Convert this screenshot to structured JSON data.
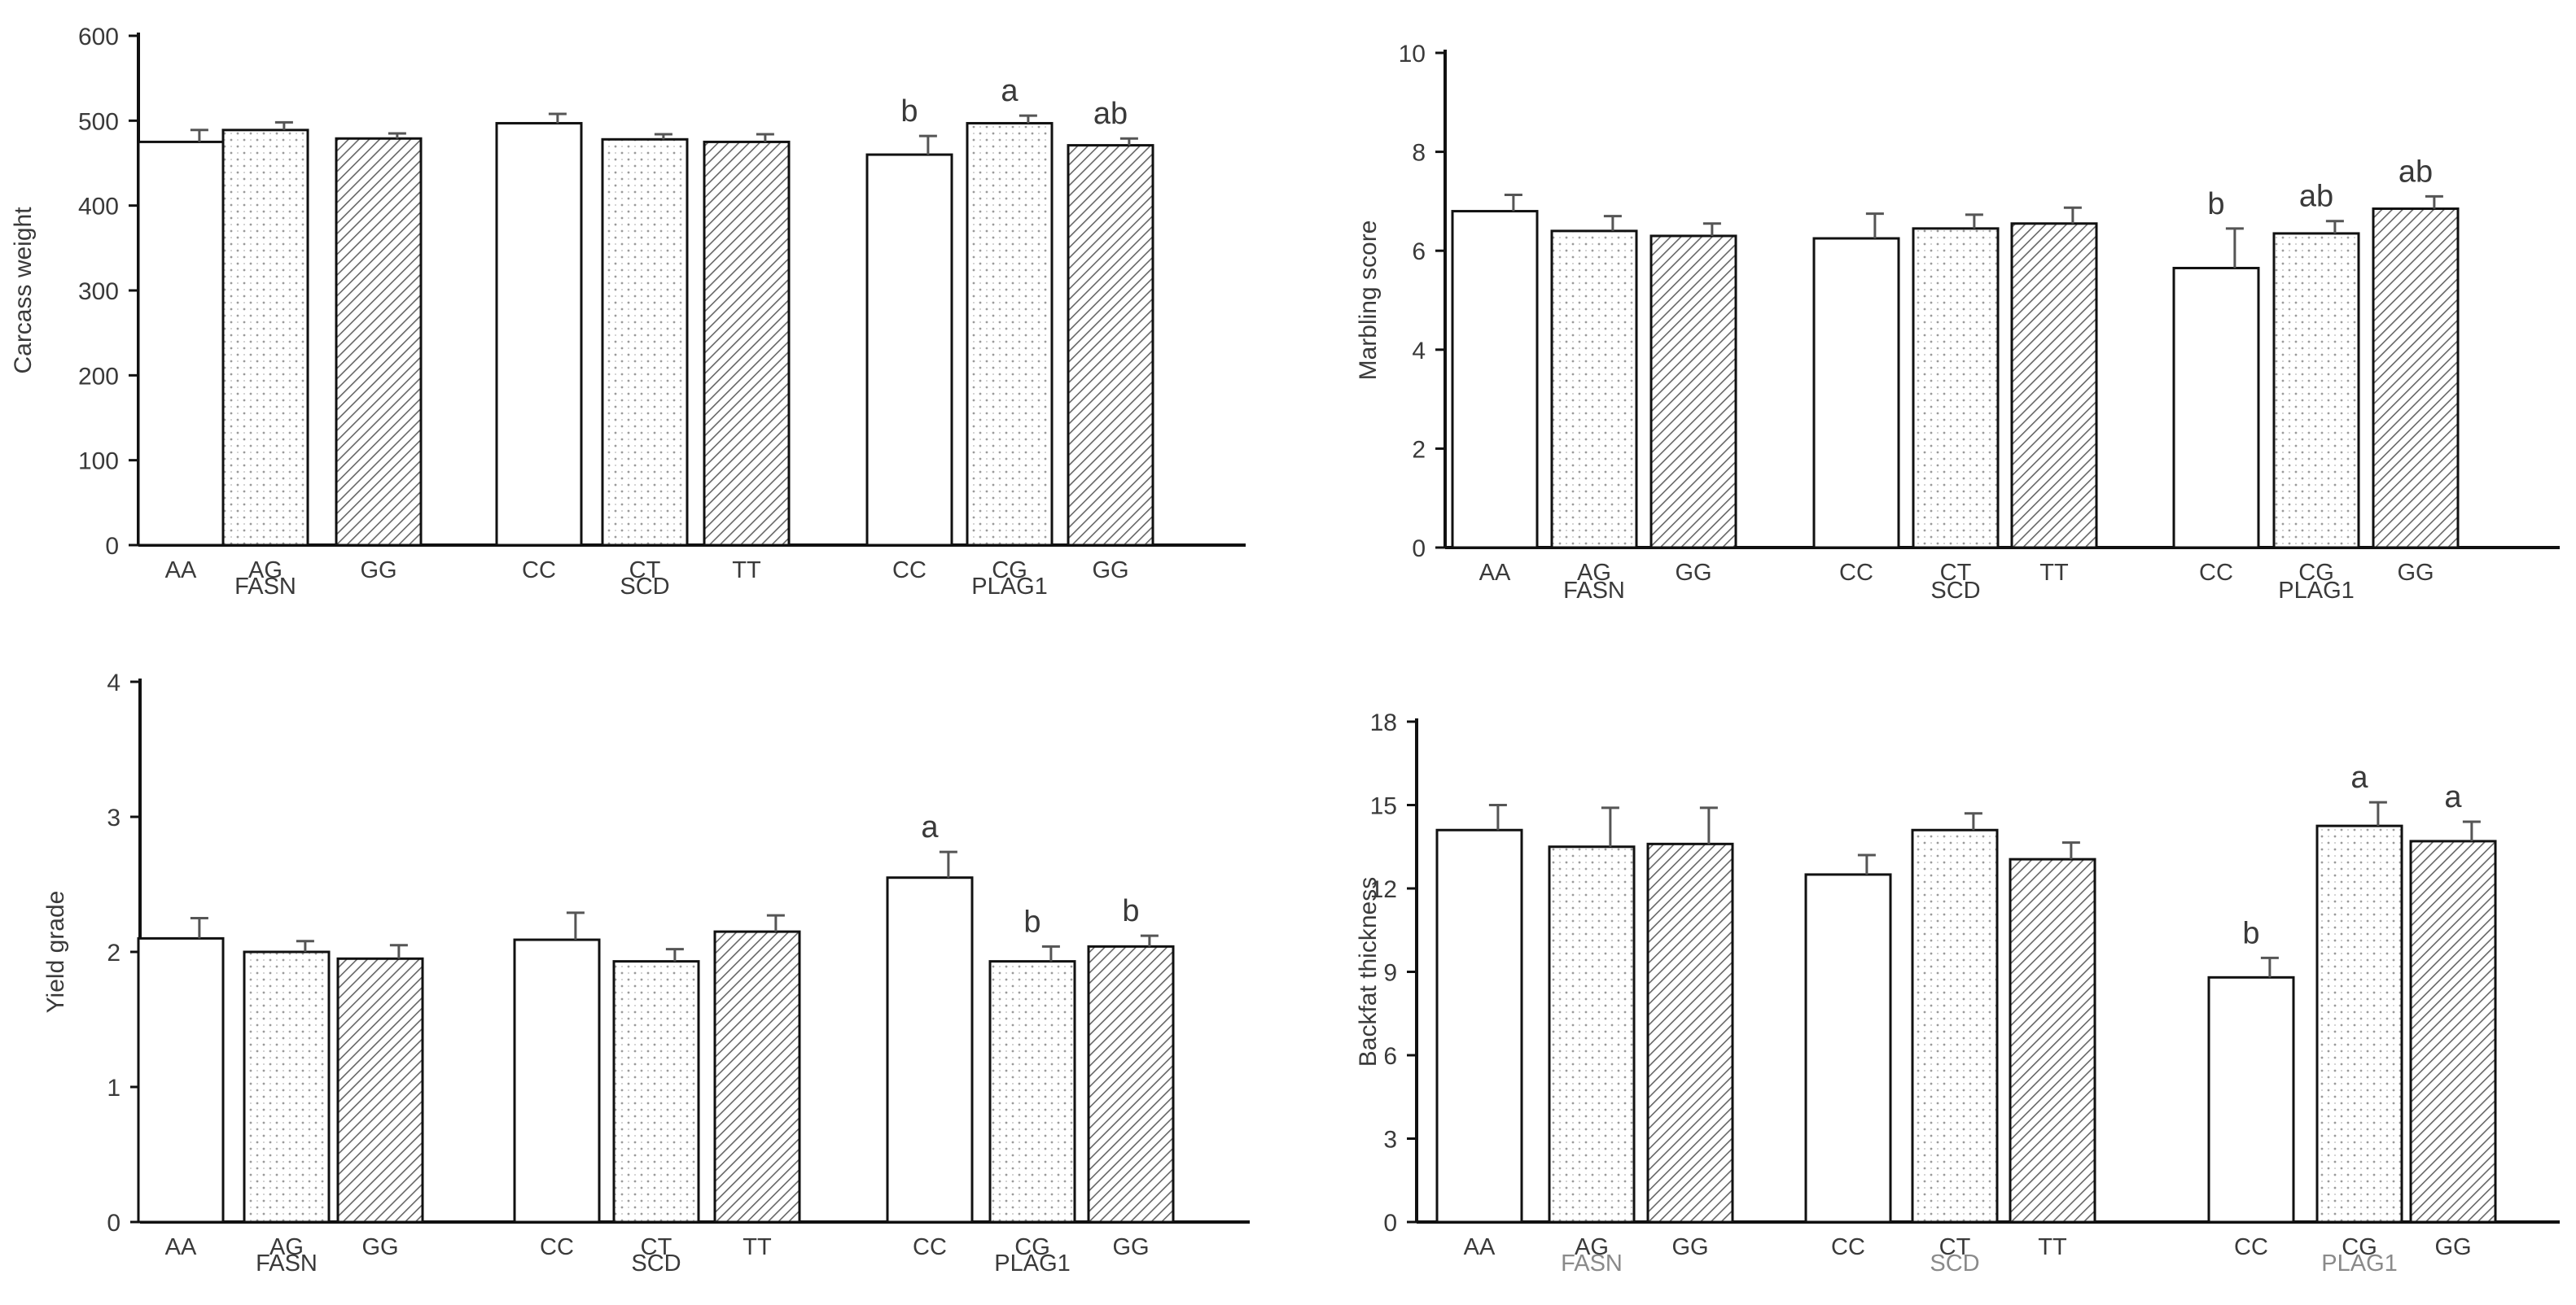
{
  "chart_data": [
    {
      "type": "bar",
      "ylabel": "Carcass weight",
      "ylim": [
        0,
        600
      ],
      "yticks": [
        "0",
        "100",
        "200",
        "300",
        "400",
        "500",
        "600"
      ],
      "gene_label_color": "#3a3a3a",
      "groups": [
        {
          "gene": "FASN",
          "categories": [
            "AA",
            "AG",
            "GG"
          ],
          "values": [
            475,
            489,
            479
          ],
          "errors": [
            14,
            9,
            6
          ],
          "letters": [
            "",
            "",
            ""
          ]
        },
        {
          "gene": "SCD",
          "categories": [
            "CC",
            "CT",
            "TT"
          ],
          "values": [
            497,
            478,
            475
          ],
          "errors": [
            11,
            6,
            9
          ],
          "letters": [
            "",
            "",
            ""
          ]
        },
        {
          "gene": "PLAG1",
          "categories": [
            "CC",
            "CG",
            "GG"
          ],
          "values": [
            460,
            497,
            471
          ],
          "errors": [
            22,
            9,
            8
          ],
          "letters": [
            "b",
            "a",
            "ab"
          ]
        }
      ]
    },
    {
      "type": "bar",
      "ylabel": "Marbling score",
      "ylim": [
        0,
        10
      ],
      "yticks": [
        "0",
        "2",
        "4",
        "6",
        "8",
        "10"
      ],
      "gene_label_color": "#3a3a3a",
      "groups": [
        {
          "gene": "FASN",
          "categories": [
            "AA",
            "AG",
            "GG"
          ],
          "values": [
            6.8,
            6.4,
            6.3
          ],
          "errors": [
            0.33,
            0.3,
            0.25
          ],
          "letters": [
            "",
            "",
            ""
          ]
        },
        {
          "gene": "SCD",
          "categories": [
            "CC",
            "CT",
            "TT"
          ],
          "values": [
            6.25,
            6.45,
            6.55
          ],
          "errors": [
            0.5,
            0.28,
            0.32
          ],
          "letters": [
            "",
            "",
            ""
          ]
        },
        {
          "gene": "PLAG1",
          "categories": [
            "CC",
            "CG",
            "GG"
          ],
          "values": [
            5.65,
            6.35,
            6.85
          ],
          "errors": [
            0.8,
            0.25,
            0.25
          ],
          "letters": [
            "b",
            "ab",
            "ab"
          ]
        }
      ]
    },
    {
      "type": "bar",
      "ylabel": "Yield grade",
      "ylim": [
        0,
        4
      ],
      "yticks": [
        "0",
        "1",
        "2",
        "3",
        "4"
      ],
      "gene_label_color": "#3a3a3a",
      "groups": [
        {
          "gene": "FASN",
          "categories": [
            "AA",
            "AG",
            "GG"
          ],
          "values": [
            2.1,
            2.0,
            1.95
          ],
          "errors": [
            0.15,
            0.08,
            0.1
          ],
          "letters": [
            "",
            "",
            ""
          ]
        },
        {
          "gene": "SCD",
          "categories": [
            "CC",
            "CT",
            "TT"
          ],
          "values": [
            2.09,
            1.93,
            2.15
          ],
          "errors": [
            0.2,
            0.09,
            0.12
          ],
          "letters": [
            "",
            "",
            ""
          ]
        },
        {
          "gene": "PLAG1",
          "categories": [
            "CC",
            "CG",
            "GG"
          ],
          "values": [
            2.55,
            1.93,
            2.04
          ],
          "errors": [
            0.19,
            0.11,
            0.08
          ],
          "letters": [
            "a",
            "b",
            "b"
          ]
        }
      ]
    },
    {
      "type": "bar",
      "ylabel": "Backfat thickness",
      "ylim": [
        0,
        18
      ],
      "yticks": [
        "0",
        "3",
        "6",
        "9",
        "12",
        "15",
        "18"
      ],
      "gene_label_color": "#8a8a8a",
      "groups": [
        {
          "gene": "FASN",
          "categories": [
            "AA",
            "AG",
            "GG"
          ],
          "values": [
            14.1,
            13.5,
            13.6
          ],
          "errors": [
            0.9,
            1.4,
            1.3
          ],
          "letters": [
            "",
            "",
            ""
          ]
        },
        {
          "gene": "SCD",
          "categories": [
            "CC",
            "CT",
            "TT"
          ],
          "values": [
            12.5,
            14.1,
            13.05
          ],
          "errors": [
            0.7,
            0.6,
            0.6
          ],
          "letters": [
            "",
            "",
            ""
          ]
        },
        {
          "gene": "PLAG1",
          "categories": [
            "CC",
            "CG",
            "GG"
          ],
          "values": [
            8.8,
            14.25,
            13.7
          ],
          "errors": [
            0.7,
            0.85,
            0.7
          ],
          "letters": [
            "b",
            "a",
            "a"
          ]
        }
      ]
    }
  ]
}
